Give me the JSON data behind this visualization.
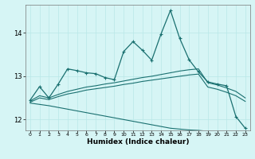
{
  "xlabel": "Humidex (Indice chaleur)",
  "bg_color": "#d6f5f5",
  "line_color": "#1a7070",
  "grid_color": "#b8e8e8",
  "xlim": [
    -0.5,
    23.5
  ],
  "ylim": [
    11.75,
    14.65
  ],
  "yticks": [
    12,
    13,
    14
  ],
  "xticks": [
    0,
    1,
    2,
    3,
    4,
    5,
    6,
    7,
    8,
    9,
    10,
    11,
    12,
    13,
    14,
    15,
    16,
    17,
    18,
    19,
    20,
    21,
    22,
    23
  ],
  "line_main_x": [
    0,
    1,
    2,
    3,
    4,
    5,
    6,
    7,
    8,
    9,
    10,
    11,
    12,
    13,
    14,
    15,
    16,
    17,
    18,
    19,
    20,
    21,
    22,
    23
  ],
  "line_main_y": [
    12.45,
    12.76,
    12.5,
    12.82,
    13.17,
    13.13,
    13.08,
    13.06,
    12.97,
    12.92,
    13.57,
    13.8,
    13.6,
    13.37,
    13.98,
    14.52,
    13.87,
    13.38,
    13.1,
    12.87,
    12.82,
    12.78,
    12.07,
    11.8
  ],
  "line2_x": [
    0,
    1,
    2,
    3,
    4,
    5,
    6,
    7,
    8,
    9,
    10,
    11,
    12,
    13,
    14,
    15,
    16,
    17,
    18,
    19,
    20,
    21,
    22,
    23
  ],
  "line2_y": [
    12.43,
    12.55,
    12.5,
    12.58,
    12.65,
    12.7,
    12.75,
    12.78,
    12.82,
    12.85,
    12.89,
    12.93,
    12.97,
    13.0,
    13.04,
    13.08,
    13.12,
    13.15,
    13.17,
    12.85,
    12.8,
    12.73,
    12.65,
    12.5
  ],
  "line3_x": [
    0,
    1,
    2,
    3,
    4,
    5,
    6,
    7,
    8,
    9,
    10,
    11,
    12,
    13,
    14,
    15,
    16,
    17,
    18,
    19,
    20,
    21,
    22,
    23
  ],
  "line3_y": [
    12.4,
    12.5,
    12.46,
    12.53,
    12.59,
    12.63,
    12.68,
    12.71,
    12.74,
    12.77,
    12.81,
    12.84,
    12.88,
    12.91,
    12.94,
    12.97,
    13.0,
    13.03,
    13.05,
    12.75,
    12.7,
    12.63,
    12.55,
    12.42
  ],
  "line4_x": [
    0,
    1,
    2,
    3,
    4,
    5,
    6,
    7,
    8,
    9,
    10,
    11,
    12,
    13,
    14,
    15,
    16,
    17,
    18,
    19,
    20,
    21,
    22,
    23
  ],
  "line4_y": [
    12.38,
    12.35,
    12.32,
    12.28,
    12.24,
    12.2,
    12.16,
    12.12,
    12.08,
    12.04,
    12.0,
    11.96,
    11.92,
    11.88,
    11.84,
    11.8,
    11.78,
    11.76,
    11.75,
    11.73,
    11.72,
    11.7,
    11.68,
    11.65
  ]
}
